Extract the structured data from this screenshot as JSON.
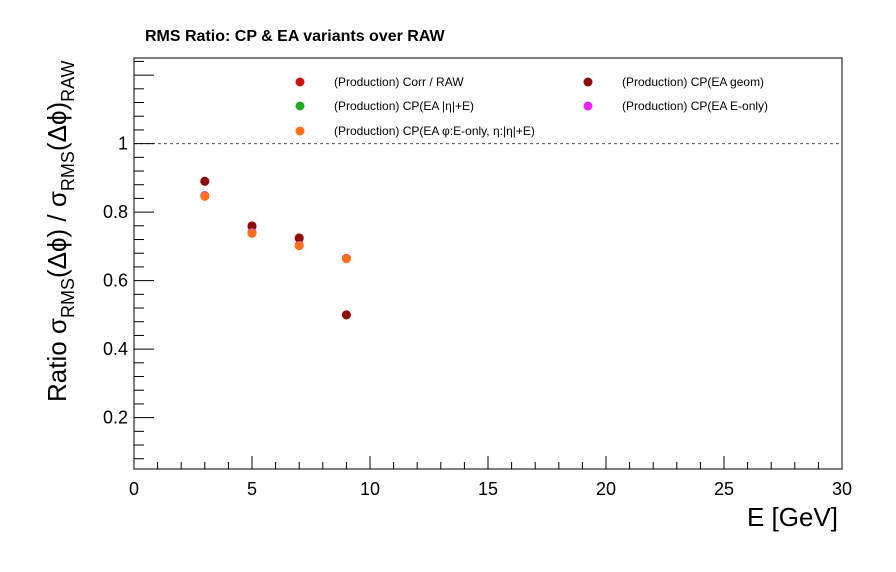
{
  "chart_data": {
    "type": "scatter",
    "title": "RMS Ratio: CP & EA variants over RAW",
    "xlabel": "E  [GeV]",
    "ylabel_parts": {
      "prefix": "Ratio  ",
      "sigma": "σ",
      "rms_sub": "RMS",
      "arg": "(Δϕ) / ",
      "arg2": "(Δϕ)",
      "raw_sub": "RAW"
    },
    "xlim": [
      0,
      30
    ],
    "ylim": [
      0.05,
      1.25
    ],
    "x_major_ticks": [
      0,
      5,
      10,
      15,
      20,
      25,
      30
    ],
    "y_major_ticks": [
      0.2,
      0.4,
      0.6,
      0.8,
      1
    ],
    "reference_line": {
      "y": 1.0,
      "style": "dashed"
    },
    "legend": {
      "placement": "top"
    },
    "series": [
      {
        "name": "(Production) Corr / RAW",
        "color": "#cc1111",
        "x": [
          3,
          5,
          7,
          9
        ],
        "y": [
          0.89,
          0.76,
          0.725,
          0.5
        ]
      },
      {
        "name": "(Production) CP(EA geom)",
        "color": "#8b0d0d",
        "x": [
          3,
          5,
          7,
          9
        ],
        "y": [
          0.89,
          0.758,
          0.723,
          0.5
        ]
      },
      {
        "name": "(Production) CP(EA |η|+E)",
        "color": "#22aa22",
        "x": [
          3,
          5,
          7,
          9
        ],
        "y": [
          0.848,
          0.74,
          0.703,
          0.665
        ]
      },
      {
        "name": "(Production) CP(EA E-only)",
        "color": "#ee22ee",
        "x": [
          3,
          5,
          7,
          9
        ],
        "y": [
          0.848,
          0.74,
          0.703,
          0.665
        ]
      },
      {
        "name": "(Production) CP(EA φ:E-only, η:|η|+E)",
        "color": "#ff6f1a",
        "x": [
          3,
          5,
          7,
          9
        ],
        "y": [
          0.846,
          0.738,
          0.702,
          0.664
        ]
      }
    ]
  }
}
